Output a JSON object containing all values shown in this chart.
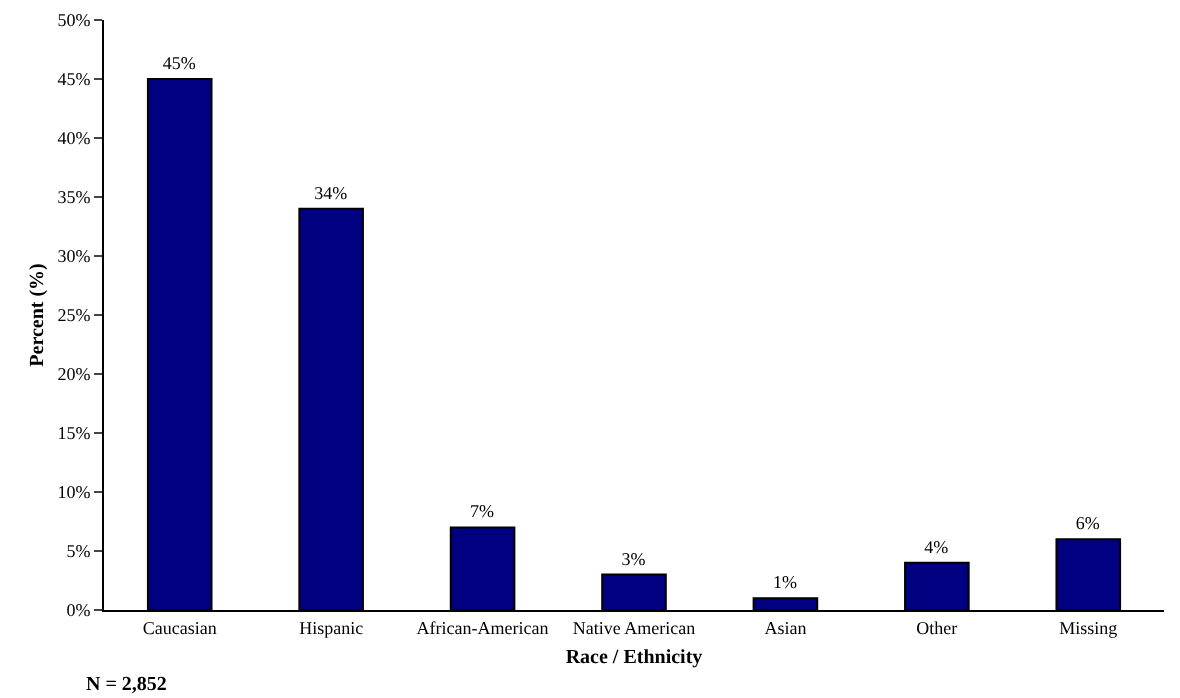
{
  "chart_data": {
    "type": "bar",
    "categories": [
      "Caucasian",
      "Hispanic",
      "African-American",
      "Native American",
      "Asian",
      "Other",
      "Missing"
    ],
    "values": [
      45,
      34,
      7,
      3,
      1,
      4,
      6
    ],
    "value_labels": [
      "45%",
      "34%",
      "7%",
      "3%",
      "1%",
      "4%",
      "6%"
    ],
    "color": "#000080",
    "xlabel": "Race / Ethnicity",
    "ylabel": "Percent (%)",
    "ylim": [
      0,
      50
    ],
    "yticks": [
      {
        "value": 0,
        "label": "0%"
      },
      {
        "value": 5,
        "label": "5%"
      },
      {
        "value": 10,
        "label": "10%"
      },
      {
        "value": 15,
        "label": "15%"
      },
      {
        "value": 20,
        "label": "20%"
      },
      {
        "value": 25,
        "label": "25%"
      },
      {
        "value": 30,
        "label": "30%"
      },
      {
        "value": 35,
        "label": "35%"
      },
      {
        "value": 40,
        "label": "40%"
      },
      {
        "value": 45,
        "label": "45%"
      },
      {
        "value": 50,
        "label": "50%"
      }
    ],
    "annotations": [
      "N = 2,852"
    ],
    "grid": false,
    "legend": false
  }
}
